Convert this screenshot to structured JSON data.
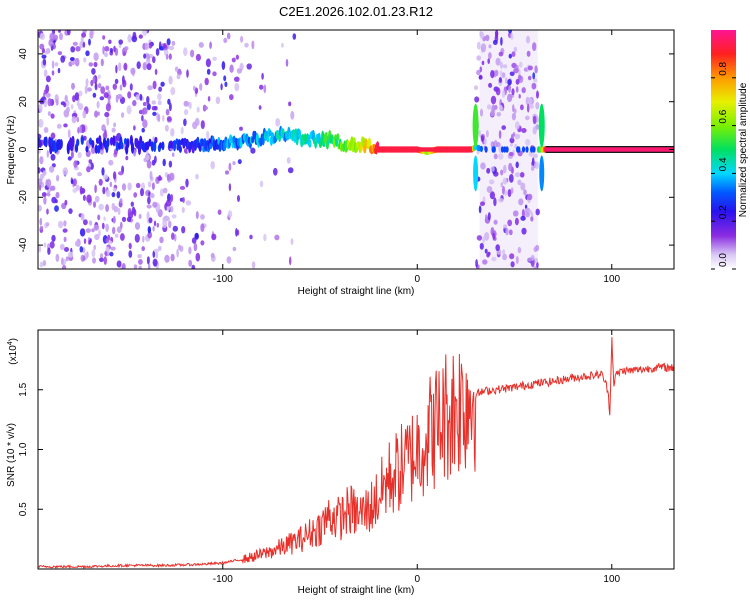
{
  "title": "C2E1.2026.102.01.23.R12",
  "chart_data": [
    {
      "type": "heatmap",
      "name": "spectrogram",
      "xlabel": "Height of straight line (km)",
      "ylabel": "Frequency (Hz)",
      "xlim": [
        -195,
        132
      ],
      "ylim": [
        -50,
        50
      ],
      "xticks": [
        -100,
        0,
        100
      ],
      "xtick_labels": [
        "-100",
        "0",
        "100"
      ],
      "yticks": [
        -40,
        -20,
        0,
        20,
        40
      ],
      "ytick_labels": [
        "-40",
        "-20",
        "0",
        "20",
        "40"
      ],
      "signal_track": {
        "x": [
          -118,
          -110,
          -100,
          -90,
          -80,
          -70,
          -60,
          -52,
          -45,
          -40,
          -35,
          -30,
          -25,
          -20,
          0,
          5,
          10,
          28,
          30,
          34,
          60,
          64,
          66,
          132
        ],
        "frequency": [
          1,
          2,
          3,
          4,
          5,
          6,
          5,
          4,
          4,
          3,
          2,
          2,
          1,
          0,
          0,
          -1,
          0,
          0,
          1,
          0,
          0,
          0,
          0,
          0
        ],
        "amplitude": [
          0.25,
          0.3,
          0.32,
          0.35,
          0.38,
          0.4,
          0.42,
          0.45,
          0.5,
          0.55,
          0.62,
          0.68,
          0.72,
          0.92,
          0.94,
          0.6,
          0.9,
          0.95,
          0.4,
          0.3,
          0.3,
          0.6,
          0.95,
          0.97
        ]
      },
      "colorbar": {
        "label": "Normalized spectral amplitude",
        "range": [
          0,
          1
        ],
        "ticks": [
          0.0,
          0.2,
          0.4,
          0.6,
          0.8
        ],
        "tick_labels": [
          "0.0",
          "0.2",
          "0.4",
          "0.6",
          "0.8"
        ]
      }
    },
    {
      "type": "line",
      "name": "snr",
      "xlabel": "Height of straight line (km)",
      "ylabel": "SNR (10 * v/v)",
      "multiplier_label": "(x10",
      "multiplier_exp": "4",
      "multiplier_close": ")",
      "xlim": [
        -195,
        132
      ],
      "ylim": [
        0,
        2.0
      ],
      "xticks": [
        -100,
        0,
        100
      ],
      "xtick_labels": [
        "-100",
        "0",
        "100"
      ],
      "yticks": [
        0.5,
        1.0,
        1.5
      ],
      "ytick_labels": [
        "0.5",
        "1.0",
        "1.5"
      ],
      "color": "#e8302a",
      "series": [
        {
          "name": "SNR",
          "x": [
            -195,
            -170,
            -150,
            -130,
            -110,
            -100,
            -90,
            -80,
            -70,
            -60,
            -50,
            -45,
            -40,
            -35,
            -30,
            -25,
            -20,
            -15,
            -10,
            -5,
            0,
            5,
            10,
            15,
            20,
            25,
            30,
            35,
            40,
            50,
            60,
            70,
            80,
            90,
            95,
            98,
            99,
            100,
            101,
            102,
            105,
            110,
            115,
            120,
            125,
            132
          ],
          "y": [
            0.02,
            0.02,
            0.03,
            0.03,
            0.04,
            0.05,
            0.08,
            0.12,
            0.18,
            0.25,
            0.35,
            0.45,
            0.42,
            0.5,
            0.45,
            0.5,
            0.6,
            0.75,
            0.82,
            0.9,
            1.0,
            1.12,
            1.2,
            1.3,
            1.36,
            1.42,
            1.46,
            1.49,
            1.5,
            1.52,
            1.55,
            1.57,
            1.6,
            1.62,
            1.63,
            1.5,
            1.3,
            1.95,
            1.55,
            1.62,
            1.66,
            1.66,
            1.67,
            1.68,
            1.69,
            1.68
          ]
        }
      ]
    }
  ]
}
